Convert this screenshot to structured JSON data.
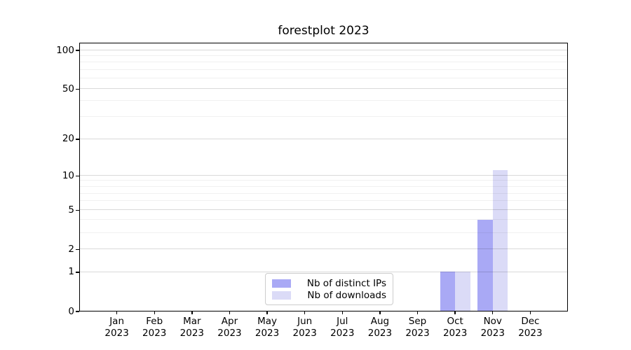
{
  "chart_data": {
    "type": "bar",
    "title": "forestplot 2023",
    "categories": [
      "Jan",
      "Feb",
      "Mar",
      "Apr",
      "May",
      "Jun",
      "Jul",
      "Aug",
      "Sep",
      "Oct",
      "Nov",
      "Dec"
    ],
    "category_year": "2023",
    "series": [
      {
        "name": "Nb of distinct IPs",
        "color": "#a9a9f5",
        "values": [
          0,
          0,
          0,
          0,
          0,
          0,
          0,
          0,
          0,
          1,
          4,
          0
        ]
      },
      {
        "name": "Nb of downloads",
        "color": "#dbdbf7",
        "values": [
          0,
          0,
          0,
          0,
          0,
          0,
          0,
          0,
          0,
          1,
          11,
          0
        ]
      }
    ],
    "xlabel": "",
    "ylabel": "",
    "y_scale": "log1p",
    "y_major_ticks": [
      0,
      1,
      2,
      5,
      10,
      20,
      50,
      100
    ],
    "y_minor_ticks": [
      3,
      4,
      6,
      7,
      8,
      9,
      30,
      40,
      60,
      70,
      80,
      90
    ],
    "ylim": [
      0,
      114.8
    ],
    "grid": true,
    "legend_position": "lower center",
    "grid_major_color": "#d9d9d9",
    "grid_minor_color": "#f0f0f0",
    "spine_color": "#000000",
    "background_color": "#ffffff"
  }
}
